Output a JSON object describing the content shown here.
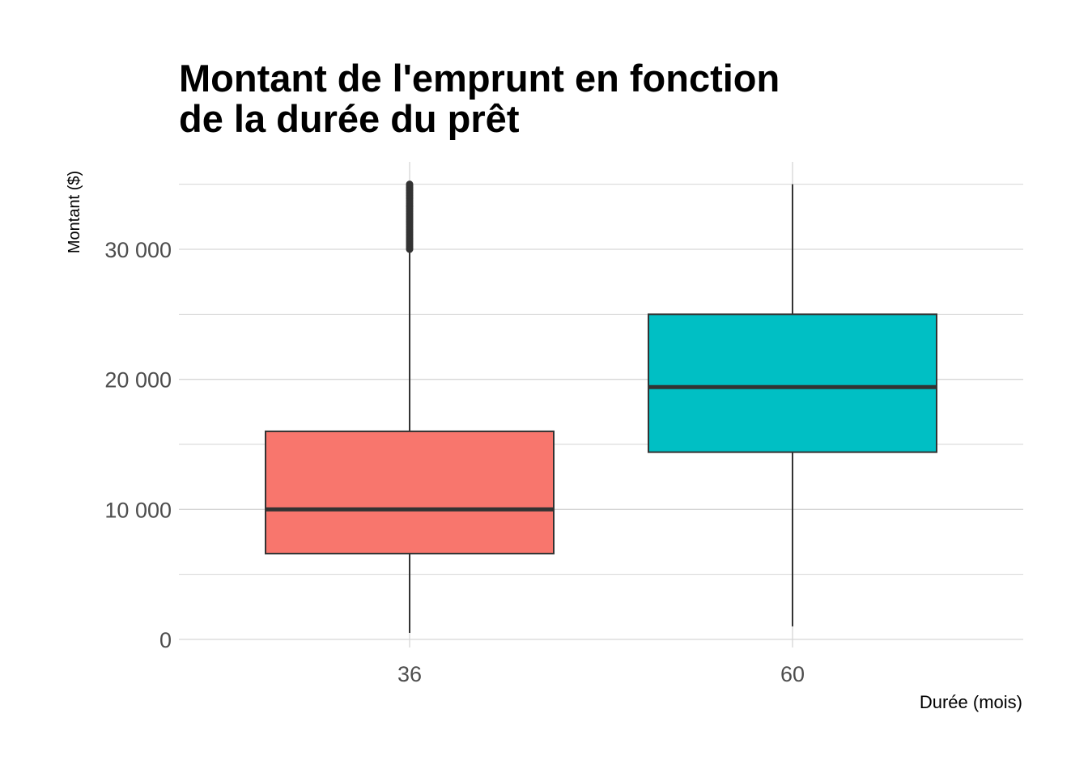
{
  "chart_data": {
    "type": "boxplot",
    "title_lines": [
      "Montant de l'emprunt en fonction",
      "de la durée du prêt"
    ],
    "xlabel": "Durée (mois)",
    "ylabel": "Montant ($)",
    "ylim": [
      -500,
      36200
    ],
    "yticks": [
      0,
      10000,
      20000,
      30000
    ],
    "ytick_labels": [
      "0",
      "10 000",
      "20 000",
      "30 000"
    ],
    "minor_gridlines": [
      5000,
      15000,
      25000,
      35000
    ],
    "grid": true,
    "legend": "none",
    "categories": [
      "36",
      "60"
    ],
    "boxes": [
      {
        "category": "36",
        "lower_whisker": 500,
        "q1": 6600,
        "median": 10000,
        "q3": 16000,
        "upper_whisker": 30000,
        "outliers_range": [
          30000,
          35000
        ],
        "color": "#F8766D"
      },
      {
        "category": "60",
        "lower_whisker": 1000,
        "q1": 14400,
        "median": 19400,
        "q3": 25000,
        "upper_whisker": 35000,
        "outliers_range": null,
        "color": "#00BFC4"
      }
    ],
    "colors": {
      "grid": "#d6d6d6",
      "box_line": "#333333",
      "median_line": "#333333",
      "tick_label": "#4d4d4d"
    }
  }
}
